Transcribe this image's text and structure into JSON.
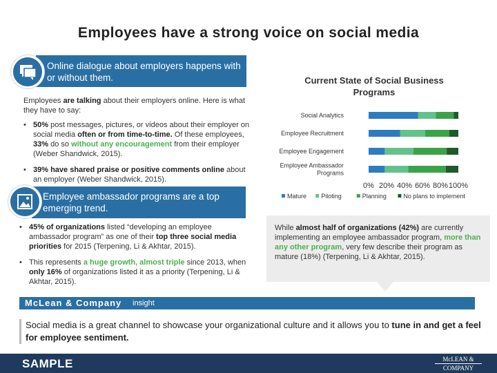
{
  "title": "Employees have a strong voice on social media",
  "section1": {
    "banner": "Online dialogue about employers happens with or without them.",
    "icon": "chat-bubbles-icon",
    "intro_pre": "Employees ",
    "intro_bold": "are talking",
    "intro_post": " about their employers online. Here is what they have to say:",
    "bullets": [
      {
        "b1": "50%",
        "t1": " post messages, pictures, or videos about their employer on social media ",
        "b2": "often or from time-to-time.",
        "t2": " Of these employees, ",
        "b3": "33%",
        "t3": " do so ",
        "g1": "without any encouragement",
        "t4": " from their employer (Weber Shandwick, 2015)."
      },
      {
        "b1": "39% have shared praise or positive comments online",
        "t1": " about an employer (Weber Shandwick, 2015)."
      }
    ]
  },
  "section2": {
    "banner": "Employee ambassador programs are a top emerging trend.",
    "icon": "image-icon",
    "bullets": [
      {
        "b1": "45% of organizations",
        "t1": " listed “developing an employee ambassador program” as one of their ",
        "b2": "top three social media priorities",
        "t2": " for 2015 (Terpening, Li & Akhtar, 2015)."
      },
      {
        "t1": "This represents ",
        "g1": "a huge growth, almost triple",
        "t2": " since 2013, when ",
        "b1": "only 16%",
        "t3": " of organizations listed it as a priority (Terpening, Li & Akhtar, 2015)."
      }
    ]
  },
  "chart_data": {
    "type": "bar",
    "orientation": "horizontal",
    "stacked": true,
    "title": "Current State of Social Business Programs",
    "categories": [
      "Social Analytics",
      "Employee Recruitment",
      "Employee Engagement",
      "Employee Ambassador Programs"
    ],
    "series": [
      {
        "name": "Mature",
        "values": [
          55,
          35,
          18,
          18
        ],
        "color": "#2e7cc0"
      },
      {
        "name": "Piloting",
        "values": [
          20,
          28,
          32,
          26
        ],
        "color": "#63c28b"
      },
      {
        "name": "Planning",
        "values": [
          20,
          27,
          37,
          42
        ],
        "color": "#3aa34a"
      },
      {
        "name": "No plans to implement",
        "values": [
          5,
          10,
          13,
          14
        ],
        "color": "#1f5a2a"
      }
    ],
    "xlim": [
      0,
      100
    ],
    "xticks": [
      "0%",
      "20%",
      "40%",
      "60%",
      "80%",
      "100%"
    ],
    "legend_position": "bottom"
  },
  "callout": {
    "t1": "While ",
    "b1": "almost half of organizations (42%)",
    "t2": " are currently implementing an employee ambassador program, ",
    "g1": "more than any other program",
    "t3": ", very few describe their program as mature (18%) (Terpening, Li & Akhtar, 2015)."
  },
  "insight": {
    "brand": "McLean & Company",
    "label": "insight",
    "text_pre": "Social media is a great channel to showcase your organizational culture and it allows you to ",
    "text_bold": "tune in and get a feel for employee sentiment."
  },
  "footer": {
    "sample": "SAMPLE",
    "logo_top": "McLEAN &",
    "logo_bottom": "COMPANY"
  },
  "colors": {
    "accent": "#2a6fa3",
    "footer": "#1f3a5c",
    "highlight_green": "#4caf50"
  }
}
